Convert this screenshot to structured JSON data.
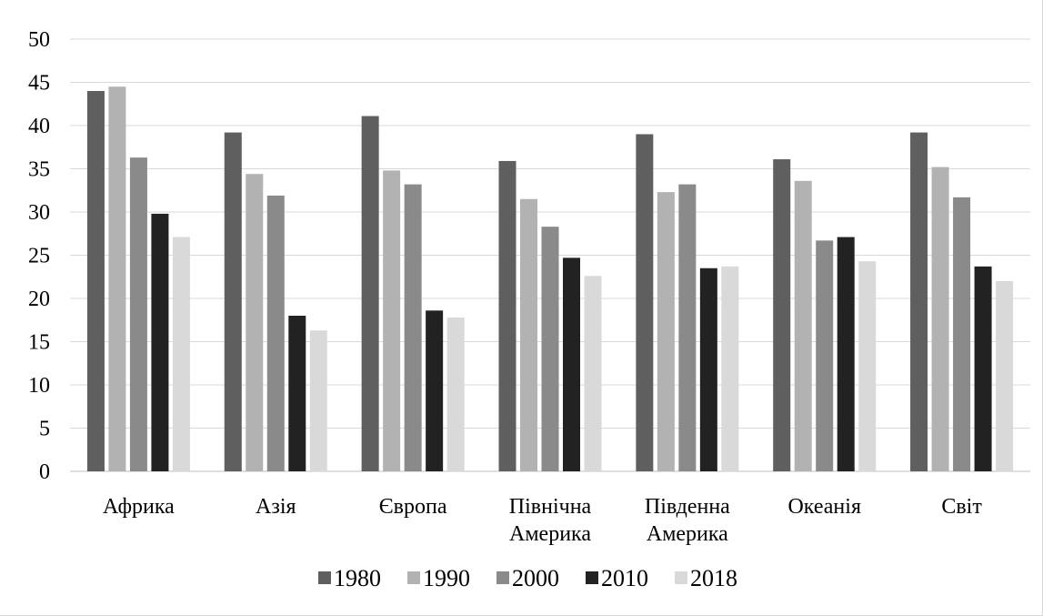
{
  "chart_data": {
    "type": "bar",
    "title": "",
    "xlabel": "",
    "ylabel": "",
    "ylim": [
      0,
      50
    ],
    "y_ticks": [
      0,
      5,
      10,
      15,
      20,
      25,
      30,
      35,
      40,
      45,
      50
    ],
    "grid": true,
    "legend_position": "bottom",
    "categories": [
      [
        "Африка"
      ],
      [
        "Азія"
      ],
      [
        "Європа"
      ],
      [
        "Північна",
        "Америка"
      ],
      [
        "Південна",
        "Америка"
      ],
      [
        "Океанія"
      ],
      [
        "Світ"
      ]
    ],
    "series": [
      {
        "name": "1980",
        "color": "#5f5f5f",
        "values": [
          44.0,
          39.2,
          41.1,
          35.9,
          39.0,
          36.1,
          39.2
        ]
      },
      {
        "name": "1990",
        "color": "#b2b2b2",
        "values": [
          44.5,
          34.4,
          34.8,
          31.5,
          32.3,
          33.6,
          35.2
        ]
      },
      {
        "name": "2000",
        "color": "#8a8a8a",
        "values": [
          36.3,
          31.9,
          33.2,
          28.3,
          33.2,
          26.7,
          31.7
        ]
      },
      {
        "name": "2010",
        "color": "#222222",
        "values": [
          29.8,
          18.0,
          18.6,
          24.7,
          23.5,
          27.1,
          23.7
        ]
      },
      {
        "name": "2018",
        "color": "#d9d9d9",
        "values": [
          27.1,
          16.3,
          17.8,
          22.6,
          23.7,
          24.3,
          22.0
        ]
      }
    ]
  }
}
